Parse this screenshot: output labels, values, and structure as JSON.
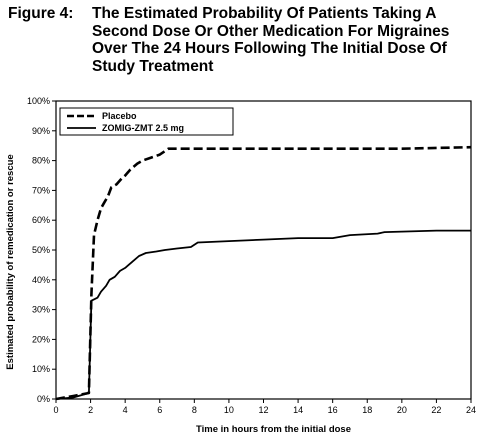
{
  "figure": {
    "label": "Figure 4:",
    "title": "The Estimated Probability Of Patients Taking A Second Dose Or Other Medication For Migraines Over The 24 Hours Following The Initial Dose Of Study Treatment"
  },
  "chart_data": {
    "type": "line",
    "title": "Figure 4: The Estimated Probability Of Patients Taking A Second Dose Or Other Medication For Migraines Over The 24 Hours Following The Initial Dose Of Study Treatment",
    "xlabel": "Time in hours from the initial dose",
    "ylabel": "Estimated probability of remedication or rescue",
    "xlim": [
      0,
      24
    ],
    "ylim": [
      0,
      100
    ],
    "xticks": [
      0,
      2,
      4,
      6,
      8,
      10,
      12,
      14,
      16,
      18,
      20,
      22,
      24
    ],
    "yticks": [
      "0%",
      "10%",
      "20%",
      "30%",
      "40%",
      "50%",
      "60%",
      "70%",
      "80%",
      "90%",
      "100%"
    ],
    "yticks_values": [
      0,
      10,
      20,
      30,
      40,
      50,
      60,
      70,
      80,
      90,
      100
    ],
    "grid": false,
    "legend_position": "top-left",
    "series": [
      {
        "name": "Placebo",
        "style": "dashed",
        "color": "#000000",
        "points": [
          [
            0,
            0
          ],
          [
            1,
            1
          ],
          [
            1.9,
            2
          ],
          [
            2.05,
            35
          ],
          [
            2.2,
            55
          ],
          [
            2.4,
            60
          ],
          [
            2.6,
            64
          ],
          [
            2.8,
            66
          ],
          [
            3.0,
            68
          ],
          [
            3.2,
            71
          ],
          [
            3.5,
            72
          ],
          [
            3.8,
            74
          ],
          [
            4.0,
            75
          ],
          [
            4.3,
            77
          ],
          [
            4.7,
            79
          ],
          [
            5.0,
            80
          ],
          [
            5.5,
            81
          ],
          [
            6.0,
            82
          ],
          [
            6.5,
            84
          ],
          [
            8,
            84
          ],
          [
            12,
            84
          ],
          [
            16,
            84
          ],
          [
            20,
            84
          ],
          [
            24,
            84.5
          ]
        ]
      },
      {
        "name": "ZOMIG-ZMT 2.5 mg",
        "style": "solid",
        "color": "#000000",
        "points": [
          [
            0,
            0
          ],
          [
            1,
            0.5
          ],
          [
            1.9,
            2
          ],
          [
            2.05,
            33
          ],
          [
            2.4,
            34
          ],
          [
            2.6,
            36
          ],
          [
            2.9,
            38
          ],
          [
            3.1,
            40
          ],
          [
            3.4,
            41
          ],
          [
            3.7,
            43
          ],
          [
            4.0,
            44
          ],
          [
            4.4,
            46
          ],
          [
            4.8,
            48
          ],
          [
            5.2,
            49
          ],
          [
            5.8,
            49.5
          ],
          [
            6.3,
            50
          ],
          [
            7.0,
            50.5
          ],
          [
            7.8,
            51
          ],
          [
            8.2,
            52.5
          ],
          [
            10,
            53
          ],
          [
            12,
            53.5
          ],
          [
            14,
            54
          ],
          [
            16,
            54
          ],
          [
            17,
            55
          ],
          [
            18.6,
            55.5
          ],
          [
            19,
            56
          ],
          [
            22,
            56.5
          ],
          [
            24,
            56.5
          ]
        ]
      }
    ]
  }
}
